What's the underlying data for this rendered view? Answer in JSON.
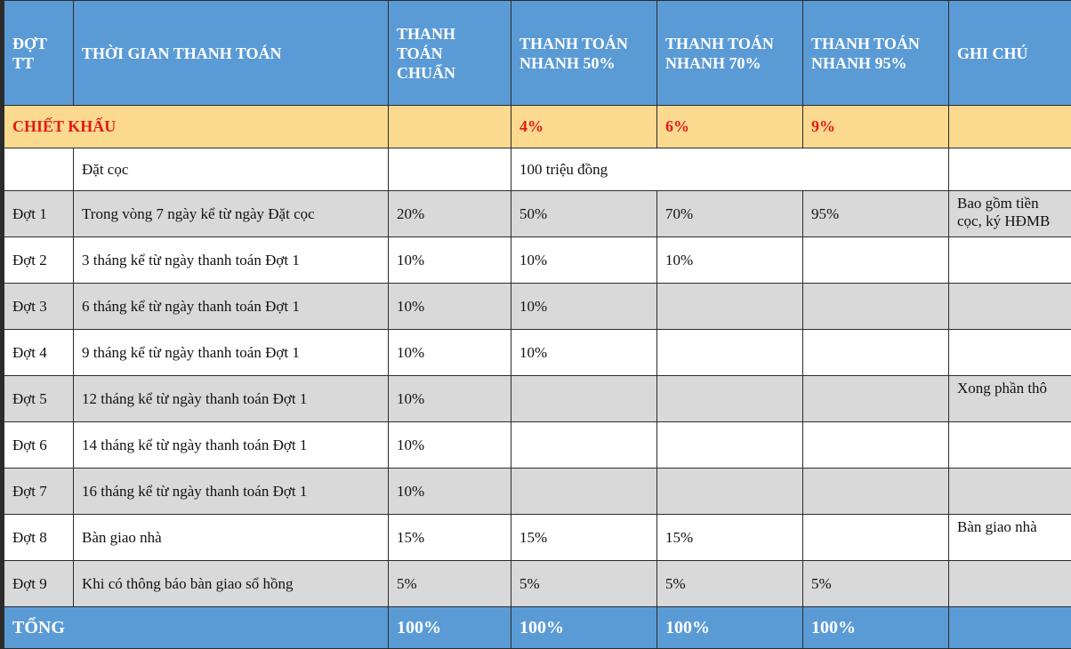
{
  "header": {
    "col0": "ĐỢT TT",
    "col1": "THỜI GIAN THANH TOÁN",
    "col2": "THANH TOÁN CHUẨN",
    "col3": "THANH TOÁN NHANH  50%",
    "col4": "THANH TOÁN NHANH  70%",
    "col5": "THANH TOÁN NHANH  95%",
    "col6": "GHI CHÚ"
  },
  "discount": {
    "label": "CHIẾT KHẤU",
    "std": "",
    "fast50": "4%",
    "fast70": "6%",
    "fast95": "9%",
    "note": ""
  },
  "deposit": {
    "label": "Đặt cọc",
    "amount": "100 triệu đồng"
  },
  "rows": [
    {
      "phase": "Đợt 1",
      "time": "Trong vòng 7 ngày kể từ ngày Đặt cọc",
      "std": "20%",
      "fast50": "50%",
      "fast70": "70%",
      "fast95": "95%",
      "note": "Bao gồm tiền cọc, ký HĐMB"
    },
    {
      "phase": "Đợt 2",
      "time": "3 tháng kể từ ngày thanh toán Đợt 1",
      "std": "10%",
      "fast50": "10%",
      "fast70": "10%",
      "fast95": "",
      "note": ""
    },
    {
      "phase": "Đợt 3",
      "time": "6 tháng kể từ ngày thanh toán Đợt 1",
      "std": "10%",
      "fast50": "10%",
      "fast70": "",
      "fast95": "",
      "note": ""
    },
    {
      "phase": "Đợt 4",
      "time": "9 tháng kể từ ngày thanh toán Đợt 1",
      "std": "10%",
      "fast50": "10%",
      "fast70": "",
      "fast95": "",
      "note": ""
    },
    {
      "phase": "Đợt 5",
      "time": "12 tháng kể từ ngày thanh toán Đợt 1",
      "std": "10%",
      "fast50": "",
      "fast70": "",
      "fast95": "",
      "note": "Xong phần thô"
    },
    {
      "phase": "Đợt 6",
      "time": "14 tháng kể từ ngày thanh toán Đợt 1",
      "std": "10%",
      "fast50": "",
      "fast70": "",
      "fast95": "",
      "note": ""
    },
    {
      "phase": "Đợt 7",
      "time": "16 tháng kể từ ngày thanh toán Đợt 1",
      "std": "10%",
      "fast50": "",
      "fast70": "",
      "fast95": "",
      "note": ""
    },
    {
      "phase": "Đợt 8",
      "time": "Bàn giao nhà",
      "std": "15%",
      "fast50": "15%",
      "fast70": "15%",
      "fast95": "",
      "note": "Bàn giao nhà"
    },
    {
      "phase": "Đợt 9",
      "time": "Khi có thông báo bàn giao sổ hồng",
      "std": "5%",
      "fast50": "5%",
      "fast70": "5%",
      "fast95": "5%",
      "note": ""
    }
  ],
  "total": {
    "label": "TỔNG",
    "std": "100%",
    "fast50": "100%",
    "fast70": "100%",
    "fast95": "100%",
    "note": ""
  },
  "colors": {
    "header_bg": "#5b9bd5",
    "discount_bg": "#fbd98f",
    "discount_text": "#e41b17",
    "row_grey": "#d9d9d9"
  }
}
